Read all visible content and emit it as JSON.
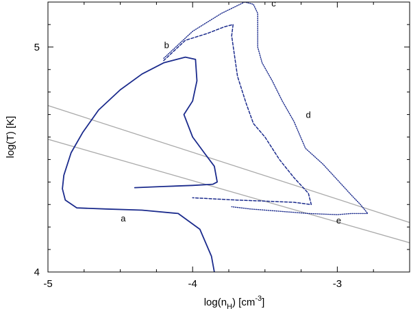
{
  "chart_data": {
    "type": "line",
    "title": "",
    "xlabel": {
      "main": "log(n",
      "sub": "H",
      "after": ") [cm",
      "sup": "-3",
      "end": "]"
    },
    "ylabel": "log(T) [K]",
    "xlim": [
      -5.0,
      -2.5
    ],
    "ylim": [
      4.0,
      5.2
    ],
    "xticks": [
      -5,
      -4,
      -3
    ],
    "xtick_labels": [
      "-5",
      "-4",
      "-3"
    ],
    "yticks": [
      4,
      5
    ],
    "ytick_labels": [
      "4",
      "5"
    ],
    "x_minor_step": 0.25,
    "y_minor_step": 0.1,
    "grid": false,
    "colors": {
      "track": "#1a2a8c",
      "reference": "#aaaaaa",
      "axes": "#000000"
    },
    "series": [
      {
        "style": "solid",
        "x": [
          -3.85,
          -3.87,
          -3.95,
          -4.1,
          -4.35,
          -4.6,
          -4.8,
          -4.88,
          -4.9,
          -4.89,
          -4.84,
          -4.76,
          -4.65,
          -4.5,
          -4.35,
          -4.2,
          -4.05,
          -3.98,
          -3.97,
          -4.0,
          -4.06,
          -4.0,
          -3.92,
          -3.85,
          -3.83,
          -3.86,
          -4.0,
          -4.2,
          -4.4
        ],
        "y": [
          4.0,
          4.07,
          4.19,
          4.26,
          4.275,
          4.28,
          4.285,
          4.32,
          4.37,
          4.43,
          4.53,
          4.62,
          4.72,
          4.81,
          4.88,
          4.93,
          4.955,
          4.945,
          4.85,
          4.76,
          4.7,
          4.6,
          4.53,
          4.47,
          4.4,
          4.39,
          4.385,
          4.38,
          4.375
        ]
      },
      {
        "style": "dashed",
        "x": [
          -4.2,
          -4.05,
          -3.9,
          -3.78,
          -3.72,
          -3.73,
          -3.69,
          -3.63,
          -3.58,
          -3.5,
          -3.4,
          -3.3,
          -3.2,
          -3.18,
          -3.3,
          -3.5,
          -3.7,
          -4.0
        ],
        "y": [
          4.94,
          5.03,
          5.06,
          5.09,
          5.1,
          5.05,
          4.87,
          4.75,
          4.66,
          4.6,
          4.5,
          4.42,
          4.35,
          4.3,
          4.31,
          4.315,
          4.32,
          4.33
        ]
      },
      {
        "style": "dotted",
        "x": [
          -4.2,
          -4.0,
          -3.8,
          -3.64,
          -3.58,
          -3.55,
          -3.55,
          -3.55,
          -3.52,
          -3.45,
          -3.38,
          -3.3,
          -3.22,
          -3.1,
          -3.0,
          -2.9,
          -2.84,
          -2.79,
          -2.9,
          -3.0,
          -3.2,
          -3.4,
          -3.6,
          -3.73
        ],
        "y": [
          4.95,
          5.07,
          5.15,
          5.2,
          5.19,
          5.15,
          5.08,
          5.0,
          4.93,
          4.85,
          4.76,
          4.67,
          4.55,
          4.48,
          4.41,
          4.34,
          4.3,
          4.26,
          4.26,
          4.255,
          4.26,
          4.27,
          4.28,
          4.29
        ]
      }
    ],
    "reference_lines": [
      {
        "x": [
          -5.0,
          -2.5
        ],
        "y": [
          4.74,
          4.22
        ]
      },
      {
        "x": [
          -5.0,
          -2.5
        ],
        "y": [
          4.59,
          4.13
        ]
      }
    ],
    "annotations": [
      {
        "text": "a",
        "x": -4.48,
        "y": 4.225
      },
      {
        "text": "b",
        "x": -4.18,
        "y": 4.995
      },
      {
        "text": "c",
        "x": -3.44,
        "y": 5.18
      },
      {
        "text": "d",
        "x": -3.2,
        "y": 4.685
      },
      {
        "text": "e",
        "x": -2.99,
        "y": 4.215
      }
    ]
  }
}
